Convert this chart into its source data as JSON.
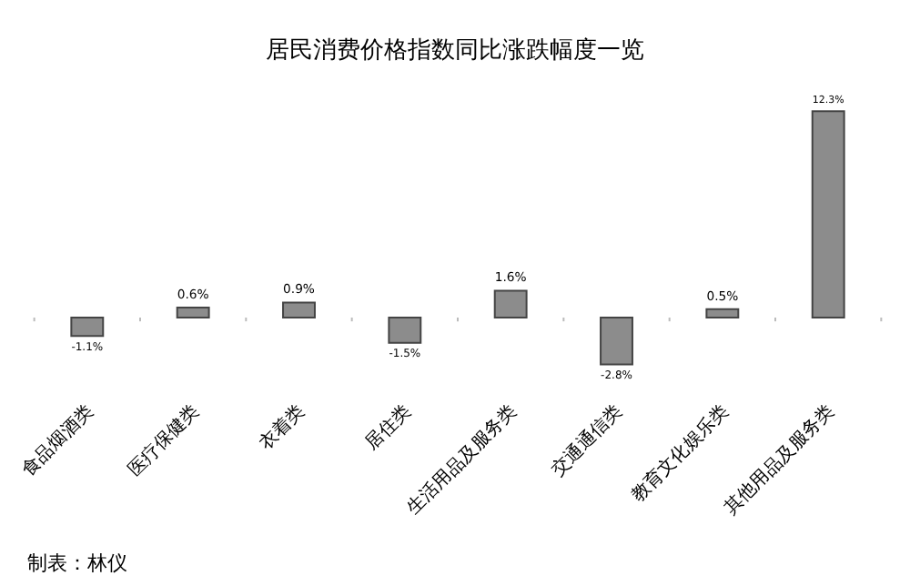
{
  "chart_data": {
    "type": "bar",
    "title": "居民消费价格指数同比涨跌幅度一览",
    "categories": [
      "食品烟酒类",
      "医疗保健类",
      "衣着类",
      "居住类",
      "生活用品及服务类",
      "交通通信类",
      "教育文化娱乐类",
      "其他用品及服务类"
    ],
    "values": [
      -1.1,
      0.6,
      0.9,
      -1.5,
      1.6,
      -2.8,
      0.5,
      12.3
    ],
    "value_labels": [
      "-1.1%",
      "0.6%",
      "0.9%",
      "-1.5%",
      "1.6%",
      "-2.8%",
      "0.5%",
      "12.3%"
    ],
    "color": "#8c8c8c",
    "legend": false,
    "annotations": [
      "制表：林仪"
    ]
  }
}
